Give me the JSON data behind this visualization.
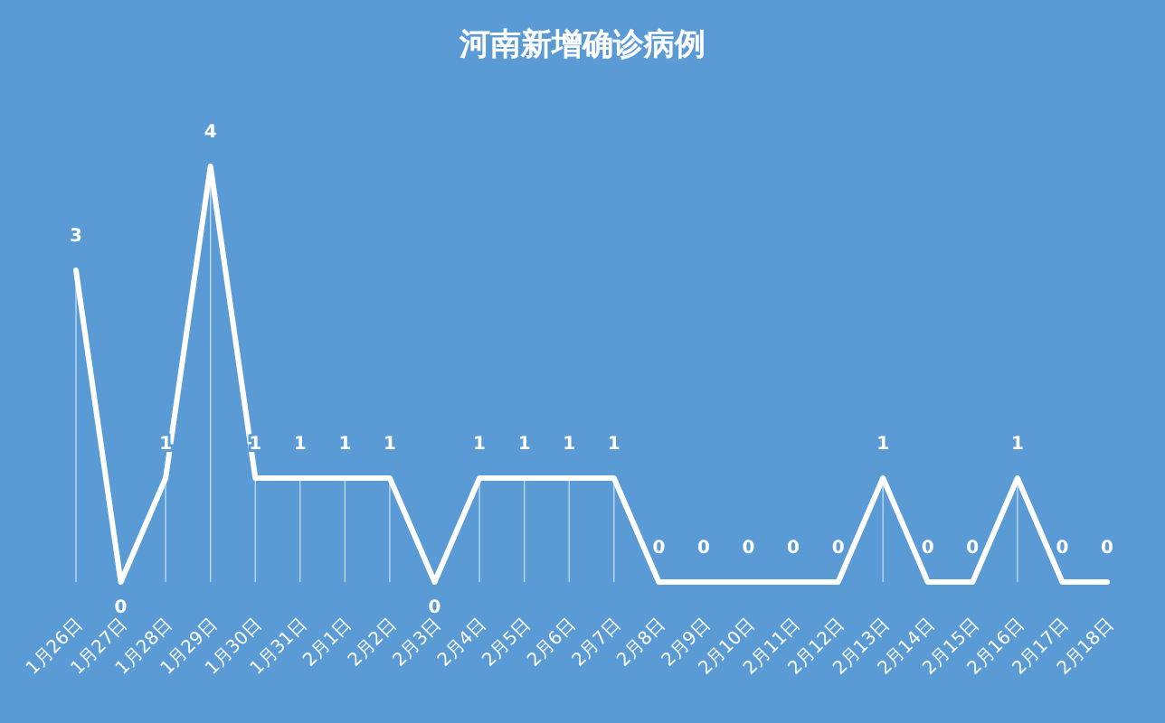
{
  "chart_data": {
    "type": "line",
    "title": "河南新增确诊病例",
    "categories": [
      "1月26日",
      "1月27日",
      "1月28日",
      "1月29日",
      "1月30日",
      "1月31日",
      "2月1日",
      "2月2日",
      "2月3日",
      "2月4日",
      "2月5日",
      "2月6日",
      "2月7日",
      "2月8日",
      "2月9日",
      "2月10日",
      "2月11日",
      "2月12日",
      "2月13日",
      "2月14日",
      "2月15日",
      "2月16日",
      "2月17日",
      "2月18日"
    ],
    "series": [
      {
        "color": "#ffffff",
        "values": [
          3,
          0,
          1,
          4,
          1,
          1,
          1,
          1,
          0,
          1,
          1,
          1,
          1,
          0,
          0,
          0,
          0,
          0,
          1,
          0,
          0,
          1,
          0,
          0
        ]
      }
    ],
    "data_labels": true,
    "marker": "none",
    "line_style": "solid",
    "grid": "x"
  }
}
